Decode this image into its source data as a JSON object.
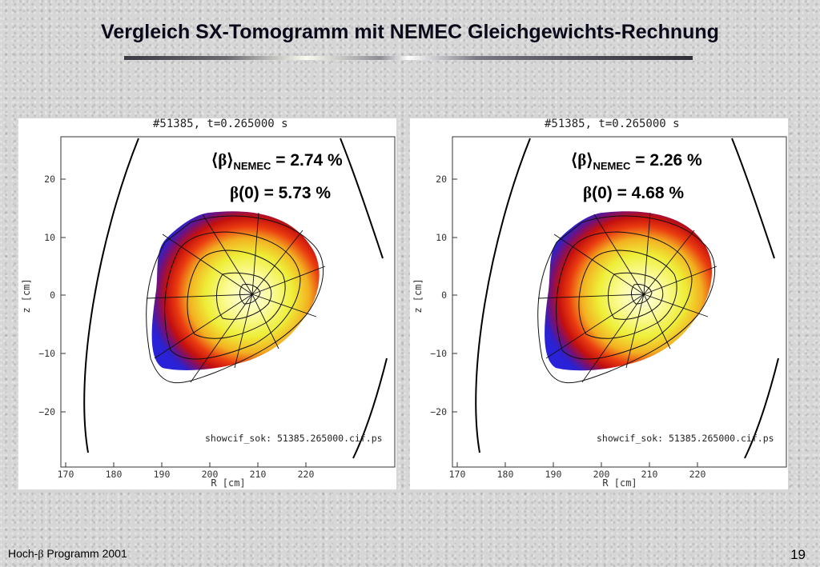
{
  "title": "Vergleich SX-Tomogramm mit NEMEC Gleichgewichts-Rechnung",
  "panels": [
    {
      "shot_title": "#51385, t=0.265000 s",
      "beta_nemec_symbol": "⟨β⟩",
      "beta_nemec_sub": "NEMEC",
      "beta_nemec_value": " = 2.74 %",
      "beta0_symbol": "β",
      "beta0_value": "(0) = 5.73 %",
      "filename": "showcif_sok: 51385.265000.cif.ps",
      "ylabel": "z [cm]",
      "xlabel": "R [cm]",
      "yticks": [
        "20",
        "10",
        "0",
        "−10",
        "−20"
      ],
      "xticks": [
        "170",
        "180",
        "190",
        "200",
        "210",
        "220"
      ]
    },
    {
      "shot_title": "#51385, t=0.265000 s",
      "beta_nemec_symbol": "⟨β⟩",
      "beta_nemec_sub": "NEMEC",
      "beta_nemec_value": " = 2.26 %",
      "beta0_symbol": "β",
      "beta0_value": "(0) = 4.68 %",
      "filename": "showcif_sok: 51385.265000.cif.ps",
      "ylabel": "z [cm]",
      "xlabel": "R [cm]",
      "yticks": [
        "20",
        "10",
        "0",
        "−10",
        "−20"
      ],
      "xticks": [
        "170",
        "180",
        "190",
        "200",
        "210",
        "220"
      ]
    }
  ],
  "footer": {
    "left_prefix": "Hoch-",
    "left_beta": "β",
    "left_suffix": " Programm 2001",
    "page_number": "19"
  }
}
